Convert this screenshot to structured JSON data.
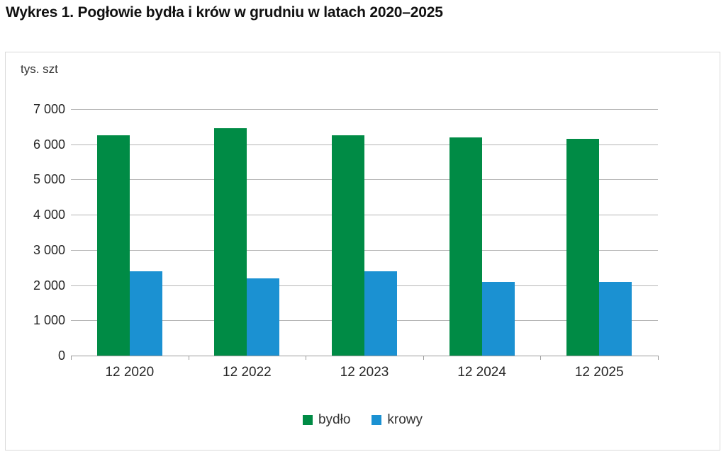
{
  "chart_data": {
    "type": "bar",
    "title": "Wykres 1. Pogłowie bydła i krów w grudniu w latach 2020–2025",
    "unit_label": "tys. szt",
    "categories": [
      "12 2020",
      "12 2022",
      "12 2023",
      "12 2024",
      "12 2025"
    ],
    "series": [
      {
        "name": "bydło",
        "color": "#008B45",
        "values": [
          6250,
          6450,
          6250,
          6200,
          6150
        ]
      },
      {
        "name": "krowy",
        "color": "#1B91D2",
        "values": [
          2400,
          2200,
          2400,
          2100,
          2100
        ]
      }
    ],
    "ylim": [
      0,
      7000
    ],
    "ytick_step": 1000,
    "ytick_labels": [
      "0",
      "1 000",
      "2 000",
      "3 000",
      "4 000",
      "5 000",
      "6 000",
      "7 000"
    ],
    "grid": true,
    "legend_position": "bottom"
  },
  "style": {
    "gridline_color": "#b5b5b5",
    "axis_color": "#9b9b9b",
    "border_color": "#d9d9d9",
    "text_color": "#262626"
  }
}
